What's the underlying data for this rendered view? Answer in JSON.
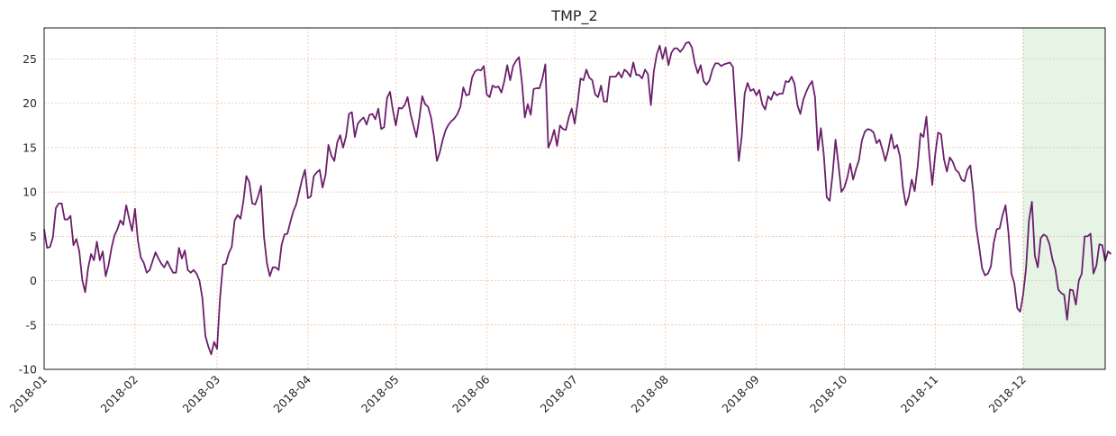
{
  "chart_data": {
    "type": "line",
    "title": "TMP_2",
    "xlabel": "",
    "ylabel": "",
    "x_range": [
      "2018-01-01",
      "2018-12-29"
    ],
    "ylim": [
      -10,
      28.5
    ],
    "y_ticks": [
      -10,
      -5,
      0,
      5,
      10,
      15,
      20,
      25
    ],
    "x_ticks": [
      "2018-01",
      "2018-02",
      "2018-03",
      "2018-04",
      "2018-05",
      "2018-06",
      "2018-07",
      "2018-08",
      "2018-09",
      "2018-10",
      "2018-11",
      "2018-12"
    ],
    "x_tick_dates": [
      "2018-01-01",
      "2018-02-01",
      "2018-03-01",
      "2018-04-01",
      "2018-05-01",
      "2018-06-01",
      "2018-07-01",
      "2018-08-01",
      "2018-09-01",
      "2018-10-01",
      "2018-11-01",
      "2018-12-01"
    ],
    "grid": true,
    "highlight_region": {
      "start": "2018-12-01",
      "end": "2018-12-29",
      "color": "#e6f4e6"
    },
    "colors": {
      "line": "#6b1f6b",
      "grid": "#e8b89a",
      "highlight": "#e6f4e6",
      "axis": "#000000"
    },
    "series": [
      {
        "start_date": "2018-01-01",
        "values": [
          5.8,
          3.7,
          3.8,
          4.9,
          8.2,
          8.7,
          8.7,
          6.9,
          6.9,
          7.3,
          4.0,
          4.7,
          3.3,
          0.1,
          -1.3,
          1.4,
          3.0,
          2.3,
          4.4,
          2.3,
          3.3,
          0.5,
          1.8,
          3.7,
          5.1,
          5.8,
          6.8,
          6.3,
          8.5,
          7.0,
          5.6,
          8.1,
          4.5,
          2.6,
          2.0,
          0.9,
          1.2,
          2.2,
          3.2,
          2.5,
          1.9,
          1.5,
          2.2,
          1.5,
          0.9,
          0.9,
          3.7,
          2.5,
          3.4,
          1.2,
          0.9,
          1.2,
          0.8,
          0.0,
          -2.0,
          -6.2,
          -7.4,
          -8.3,
          -6.9,
          -7.7,
          -2.0,
          1.8,
          1.9,
          3.1,
          3.8,
          6.8,
          7.4,
          7.0,
          9.0,
          11.8,
          11.1,
          8.7,
          8.6,
          9.5,
          10.7,
          5.0,
          2.0,
          0.5,
          1.5,
          1.5,
          1.2,
          4.0,
          5.2,
          5.3,
          6.6,
          7.8,
          8.6,
          10.0,
          11.4,
          12.5,
          9.3,
          9.5,
          11.8,
          12.2,
          12.5,
          10.5,
          11.9,
          15.3,
          14.1,
          13.5,
          15.6,
          16.4,
          15.0,
          16.3,
          18.8,
          19.0,
          16.2,
          17.7,
          18.1,
          18.4,
          17.6,
          18.7,
          18.8,
          18.2,
          19.4,
          17.1,
          17.3,
          20.6,
          21.3,
          19.2,
          17.5,
          19.5,
          19.4,
          19.8,
          20.7,
          18.8,
          17.5,
          16.2,
          18.3,
          20.8,
          19.9,
          19.6,
          18.4,
          16.3,
          13.5,
          14.5,
          15.9,
          17.0,
          17.6,
          18.0,
          18.3,
          18.8,
          19.6,
          21.8,
          20.9,
          21.0,
          22.9,
          23.6,
          23.8,
          23.7,
          24.2,
          21.0,
          20.7,
          22.0,
          21.8,
          21.9,
          21.2,
          22.5,
          24.3,
          22.6,
          24.2,
          24.8,
          25.2,
          22.4,
          18.4,
          19.9,
          18.7,
          21.6,
          21.7,
          21.7,
          22.8,
          24.4,
          15.0,
          15.8,
          17.0,
          15.2,
          17.5,
          17.1,
          17.0,
          18.4,
          19.4,
          17.7,
          20.0,
          22.8,
          22.6,
          23.8,
          22.9,
          22.6,
          21.0,
          20.7,
          22.0,
          20.2,
          20.2,
          23.0,
          23.0,
          23.0,
          23.5,
          22.9,
          23.8,
          23.5,
          23.0,
          24.6,
          23.2,
          23.2,
          22.8,
          23.8,
          23.3,
          19.8,
          23.6,
          25.5,
          26.5,
          25.0,
          26.3,
          24.3,
          25.7,
          26.2,
          26.2,
          25.8,
          26.2,
          26.8,
          26.9,
          26.3,
          24.5,
          23.4,
          24.3,
          22.5,
          22.1,
          22.6,
          23.8,
          24.5,
          24.5,
          24.2,
          24.4,
          24.5,
          24.6,
          24.1,
          18.8,
          13.5,
          16.3,
          21.1,
          22.3,
          21.4,
          21.6,
          20.9,
          21.5,
          19.9,
          19.3,
          20.8,
          20.4,
          21.3,
          20.9,
          21.1,
          21.1,
          22.5,
          22.4,
          23.0,
          22.2,
          19.8,
          18.8,
          20.4,
          21.3,
          22.0,
          22.5,
          20.7,
          14.7,
          17.2,
          14.2,
          9.4,
          9.0,
          12.0,
          15.9,
          13.1,
          10.0,
          10.5,
          11.6,
          13.2,
          11.4,
          12.6,
          13.6,
          15.8,
          16.8,
          17.1,
          17.0,
          16.7,
          15.5,
          15.9,
          14.8,
          13.5,
          14.8,
          16.5,
          14.9,
          15.3,
          14.0,
          10.5,
          8.5,
          9.5,
          11.4,
          10.1,
          12.8,
          16.6,
          16.2,
          18.5,
          14.2,
          10.8,
          14.2,
          16.7,
          16.5,
          13.7,
          12.3,
          13.9,
          13.4,
          12.5,
          12.2,
          11.4,
          11.2,
          12.5,
          13.0,
          9.9,
          6.0,
          3.8,
          1.4,
          0.6,
          0.8,
          1.6,
          4.3,
          5.8,
          5.9,
          7.4,
          8.5,
          5.4,
          0.8,
          -0.3,
          -3.1,
          -3.5,
          -1.6,
          1.4,
          6.8,
          8.9,
          2.8,
          1.5,
          4.8,
          5.2,
          5.0,
          4.1,
          2.4,
          1.3,
          -1.0,
          -1.4,
          -1.6,
          -4.4,
          -1.0,
          -1.1,
          -2.7,
          0.0,
          0.8,
          5.0,
          5.0,
          5.3,
          0.8,
          1.7,
          4.1,
          4.0,
          2.2,
          3.3,
          3.0
        ]
      }
    ]
  }
}
